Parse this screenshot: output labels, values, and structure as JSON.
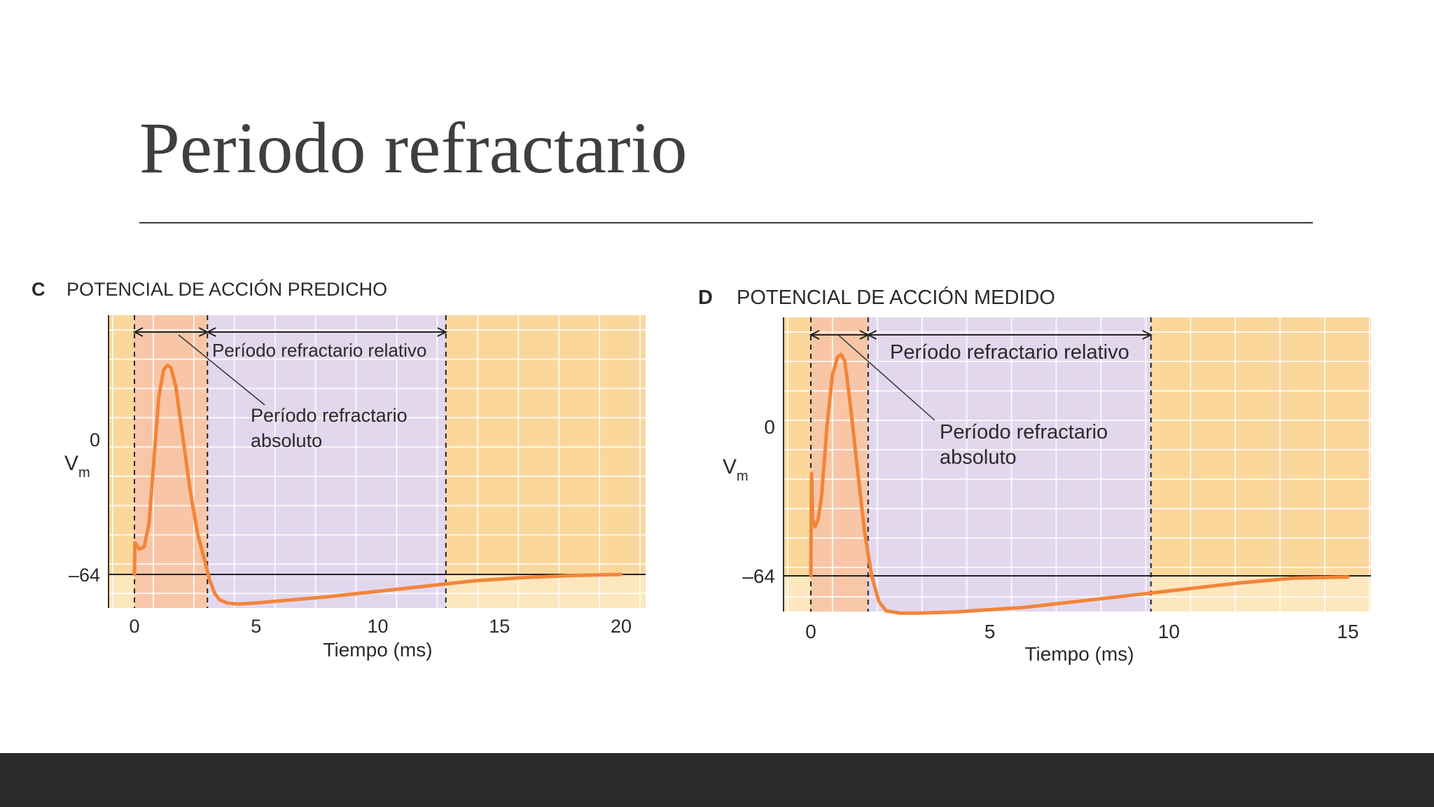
{
  "slide": {
    "title": "Periodo refractario"
  },
  "colors": {
    "background": "#ffffff",
    "title": "#3f3f3f",
    "bottom_bar": "#2a2a2a",
    "chart_bg_yellow": "#fbd79b",
    "chart_bg_light": "#fde7be",
    "absolute_region": "#f8c5a8",
    "relative_region": "#e0d7f0",
    "trace": "#f2853a",
    "grid": "#ffffff"
  },
  "chart_data": [
    {
      "type": "line",
      "panel_letter": "C",
      "title": "POTENCIAL DE ACCIÓN PREDICHO",
      "xlabel": "Tiempo (ms)",
      "ylabel": "V",
      "ylabel_sub": "m",
      "xlim": [
        -1,
        21
      ],
      "x_ticks": [
        0,
        5,
        10,
        15,
        20
      ],
      "y_ticks": [
        {
          "value": 0,
          "label": "0"
        },
        {
          "value": -64,
          "label": "–64"
        }
      ],
      "grid": true,
      "regions": [
        {
          "name": "absoluto",
          "from": 0,
          "to": 3
        },
        {
          "name": "relativo",
          "from": 3,
          "to": 12.8
        }
      ],
      "region_labels": {
        "relative": "Período refractario relativo",
        "absolute_line1": "Período refractario",
        "absolute_line2": "absoluto"
      },
      "series": [
        {
          "x": [
            0,
            0.02,
            0.2,
            0.4,
            0.6,
            0.8,
            1.0,
            1.2,
            1.35,
            1.5,
            1.7,
            2.0,
            2.3,
            2.6,
            2.9,
            3.1,
            3.3,
            3.5,
            3.8,
            4.2,
            4.6,
            5.0,
            6,
            8,
            10,
            12,
            14,
            16,
            18,
            20
          ],
          "y": [
            -64,
            -49,
            -52,
            -51,
            -40,
            -10,
            20,
            33,
            35,
            34,
            25,
            0,
            -25,
            -45,
            -58,
            -67,
            -73,
            -76,
            -77.5,
            -78,
            -77.8,
            -77.5,
            -76.5,
            -74.5,
            -72,
            -69.5,
            -67,
            -65.5,
            -64.5,
            -64
          ]
        }
      ]
    },
    {
      "type": "line",
      "panel_letter": "D",
      "title": "POTENCIAL DE ACCIÓN MEDIDO",
      "xlabel": "Tiempo (ms)",
      "ylabel": "V",
      "ylabel_sub": "m",
      "xlim": [
        -0.8,
        15.5
      ],
      "x_ticks": [
        0,
        5,
        10,
        15
      ],
      "y_ticks": [
        {
          "value": 0,
          "label": "0"
        },
        {
          "value": -64,
          "label": "–64"
        }
      ],
      "grid": true,
      "regions": [
        {
          "name": "absoluto",
          "from": 0,
          "to": 1.6
        },
        {
          "name": "relativo",
          "from": 1.6,
          "to": 9.5
        }
      ],
      "region_labels": {
        "relative": "Período refractario relativo",
        "absolute_line1": "Período refractario",
        "absolute_line2": "absoluto"
      },
      "series": [
        {
          "x": [
            0,
            0.02,
            0.05,
            0.12,
            0.2,
            0.3,
            0.45,
            0.6,
            0.75,
            0.85,
            0.95,
            1.1,
            1.3,
            1.5,
            1.7,
            1.9,
            2.1,
            2.5,
            3,
            4,
            5,
            6,
            8,
            10,
            12,
            13.5,
            15
          ],
          "y": [
            -64,
            -20,
            -40,
            -43,
            -40,
            -30,
            0,
            22,
            30,
            31,
            28,
            10,
            -18,
            -45,
            -64,
            -75,
            -79,
            -80,
            -80,
            -79.5,
            -78.5,
            -77.5,
            -74,
            -70.5,
            -67,
            -65,
            -64.5
          ]
        }
      ]
    }
  ]
}
